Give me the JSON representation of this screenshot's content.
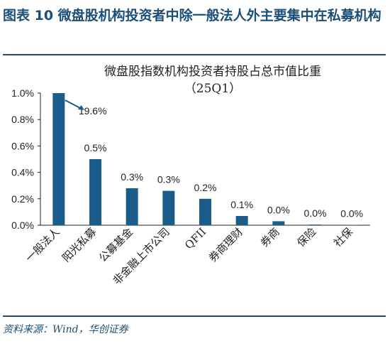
{
  "figure": {
    "title": "图表 10   微盘股机构投资者中除一般法人外主要集中在私募机构",
    "source": "资料来源：Wind，华创证券"
  },
  "chart_data": {
    "type": "bar",
    "title": "微盘股指数机构投资者持股占总市值比重",
    "subtitle": "（25Q1）",
    "categories": [
      "一般法人",
      "阳光私募",
      "公募基金",
      "非金融上市公司",
      "QFII",
      "券商理财",
      "券商",
      "保险",
      "社保"
    ],
    "values": [
      19.6,
      0.5,
      0.28,
      0.26,
      0.2,
      0.07,
      0.03,
      0.005,
      0.003
    ],
    "data_labels": [
      "19.6%",
      "0.5%",
      "0.3%",
      "0.3%",
      "0.2%",
      "0.1%",
      "0.0%",
      "0.0%",
      "0.0%"
    ],
    "y_ticks": [
      "0.0%",
      "0.2%",
      "0.4%",
      "0.6%",
      "0.8%",
      "1.0%"
    ],
    "ylim": [
      0,
      1.0
    ],
    "truncated_first_bar": true,
    "grid": false,
    "bar_color": "#1b5d8a"
  }
}
